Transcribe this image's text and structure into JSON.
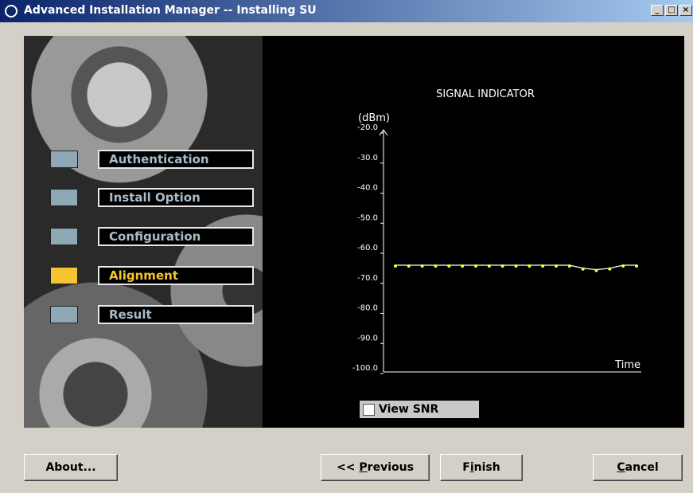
{
  "window": {
    "title": "Advanced Installation Manager -- Installing SU"
  },
  "steps": {
    "items": [
      "Authentication",
      "Install Option",
      "Configuration",
      "Alignment",
      "Result"
    ],
    "active": 3
  },
  "chart_data": {
    "type": "line",
    "title": "SIGNAL INDICATOR",
    "y_label": "(dBm)",
    "x_label": "Time",
    "categories": [
      null,
      null,
      null,
      null,
      null,
      null,
      null,
      null,
      null,
      null,
      null,
      null,
      null,
      null,
      null,
      null,
      null,
      null,
      null
    ],
    "values": [
      -64.5,
      -64.5,
      -64.5,
      -64.5,
      -64.5,
      -64.5,
      -64.5,
      -64.5,
      -64.5,
      -64.5,
      -64.5,
      -64.5,
      -64.5,
      -64.5,
      -65.5,
      -66,
      -65.5,
      -64.5,
      -64.5
    ],
    "color": "#ffff33",
    "line_color": "#ffffff",
    "ylim": [
      -100,
      -20
    ],
    "yticks": [
      {
        "value": -20,
        "label": "-20.0"
      },
      {
        "value": -30,
        "label": "-30.0"
      },
      {
        "value": -40,
        "label": "-40.0"
      },
      {
        "value": -50,
        "label": "-50.0"
      },
      {
        "value": -60,
        "label": "-60.0"
      },
      {
        "value": -70,
        "label": "-70.0"
      },
      {
        "value": -80,
        "label": "-80.0"
      },
      {
        "value": -90,
        "label": "-90.0"
      },
      {
        "value": -100,
        "label": "-100.0"
      }
    ]
  },
  "checkbox": {
    "label": "View SNR",
    "checked": false
  },
  "buttons": [
    {
      "label": "About...",
      "mnemonic": null
    },
    {
      "label": "<< Previous",
      "mnemonic": 3
    },
    {
      "label": "Finish",
      "mnemonic": 1
    },
    {
      "label": "Cancel",
      "mnemonic": 0
    }
  ]
}
